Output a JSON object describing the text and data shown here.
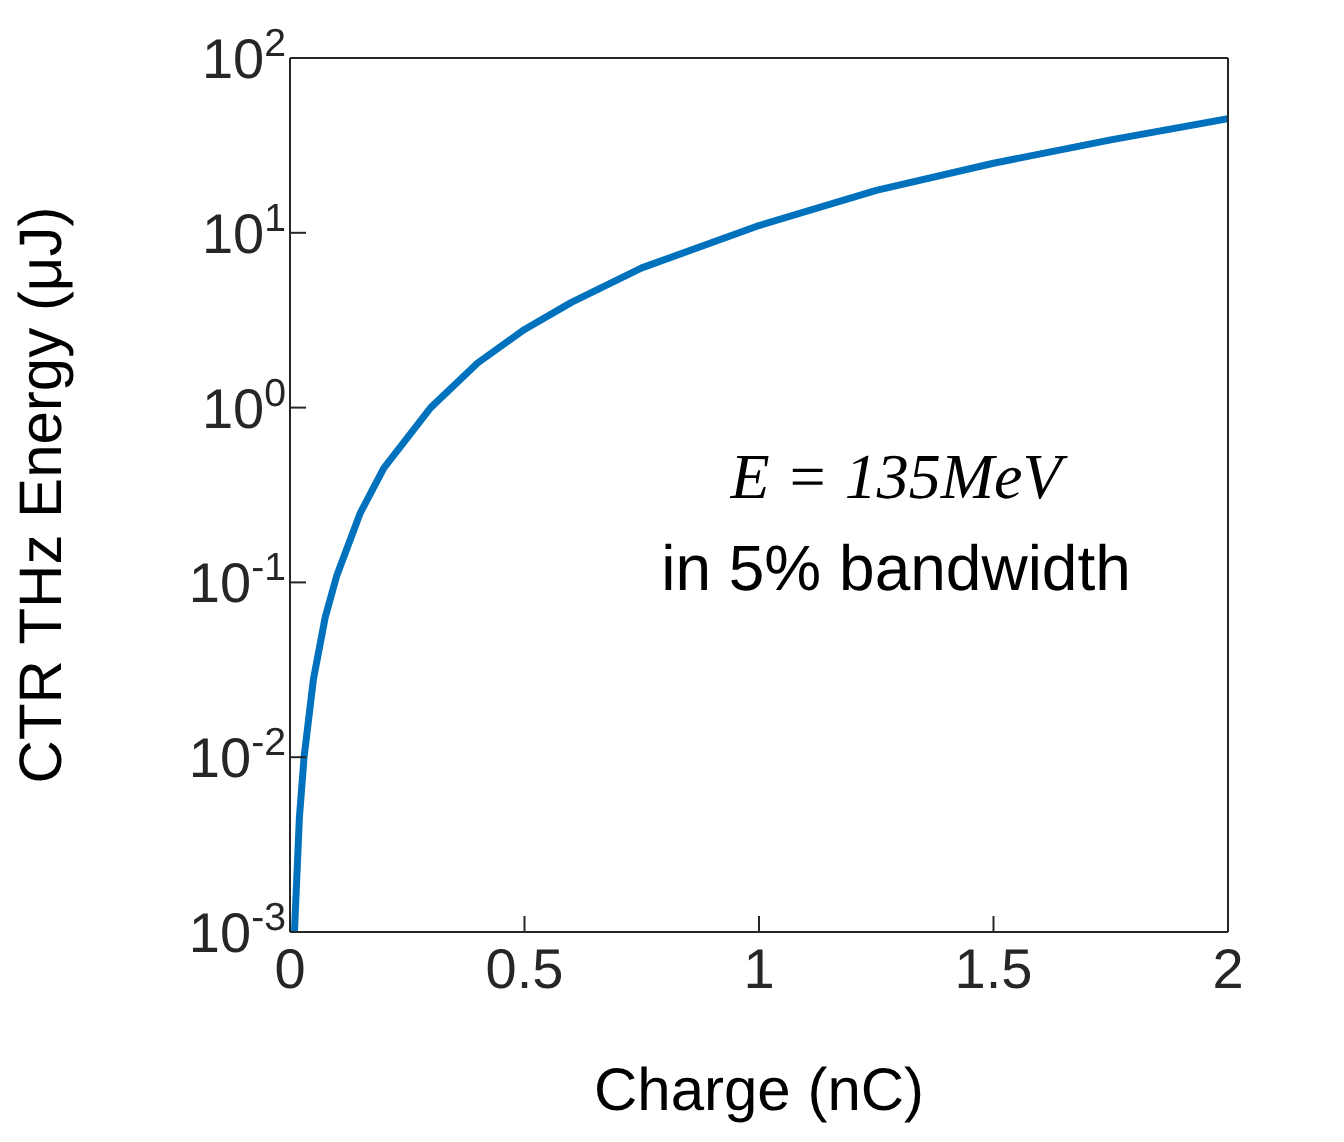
{
  "chart_data": {
    "type": "line",
    "xlabel": "Charge   (nC)",
    "ylabel": "CTR THz Energy   (μJ)",
    "x": [
      0.0095,
      0.02,
      0.03,
      0.05,
      0.075,
      0.1,
      0.15,
      0.2,
      0.3,
      0.4,
      0.5,
      0.6,
      0.75,
      1,
      1.25,
      1.5,
      1.75,
      2
    ],
    "series": [
      {
        "color": "#0072bd",
        "values": [
          0.001,
          0.0045,
          0.01,
          0.028,
          0.063,
          0.11,
          0.25,
          0.45,
          1.0,
          1.8,
          2.8,
          4.0,
          6.3,
          11,
          17.5,
          25,
          34,
          45
        ]
      }
    ],
    "xlim": [
      0,
      2
    ],
    "xticks": [
      0,
      0.5,
      1,
      1.5,
      2
    ],
    "ylim": [
      0.001,
      100
    ],
    "yticks": [
      {
        "value": 0.001,
        "label": "10$^{-3}$"
      },
      {
        "value": 0.01,
        "label": "10$^{-2}$"
      },
      {
        "value": 0.1,
        "label": "10$^{-1}$"
      },
      {
        "value": 1,
        "label": "10$^{0}$"
      },
      {
        "value": 10,
        "label": "10$^{1}$"
      },
      {
        "value": 100,
        "label": "10$^{2}$"
      }
    ],
    "log": true,
    "grid": false,
    "marker": "none",
    "line_style": "solid",
    "annotations": [
      "E = 135MeV",
      "in 5% bandwidth"
    ]
  }
}
